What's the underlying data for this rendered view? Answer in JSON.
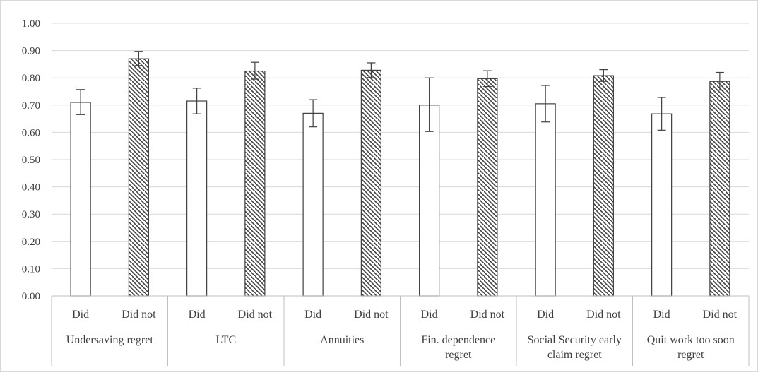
{
  "chart_data": {
    "type": "bar",
    "title": "",
    "xlabel": "",
    "ylabel": "",
    "ylim": [
      0,
      1.0
    ],
    "yticks": [
      "0.00",
      "0.10",
      "0.20",
      "0.30",
      "0.40",
      "0.50",
      "0.60",
      "0.70",
      "0.80",
      "0.90",
      "1.00"
    ],
    "grid": true,
    "legend": "none",
    "groups": [
      {
        "label_lines": [
          "Undersaving regret"
        ],
        "bars": [
          {
            "label": "Did",
            "value": 0.71,
            "err_low": 0.665,
            "err_high": 0.757,
            "style": "open"
          },
          {
            "label": "Did not",
            "value": 0.87,
            "err_low": 0.845,
            "err_high": 0.897,
            "style": "hatched"
          }
        ]
      },
      {
        "label_lines": [
          "LTC"
        ],
        "bars": [
          {
            "label": "Did",
            "value": 0.715,
            "err_low": 0.668,
            "err_high": 0.762,
            "style": "open"
          },
          {
            "label": "Did not",
            "value": 0.825,
            "err_low": 0.795,
            "err_high": 0.857,
            "style": "hatched"
          }
        ]
      },
      {
        "label_lines": [
          "Annuities"
        ],
        "bars": [
          {
            "label": "Did",
            "value": 0.67,
            "err_low": 0.62,
            "err_high": 0.72,
            "style": "open"
          },
          {
            "label": "Did not",
            "value": 0.828,
            "err_low": 0.801,
            "err_high": 0.855,
            "style": "hatched"
          }
        ]
      },
      {
        "label_lines": [
          "Fin. dependence",
          "regret"
        ],
        "bars": [
          {
            "label": "Did",
            "value": 0.7,
            "err_low": 0.603,
            "err_high": 0.8,
            "style": "open"
          },
          {
            "label": "Did not",
            "value": 0.797,
            "err_low": 0.768,
            "err_high": 0.826,
            "style": "hatched"
          }
        ]
      },
      {
        "label_lines": [
          "Social Security early",
          "claim regret"
        ],
        "bars": [
          {
            "label": "Did",
            "value": 0.705,
            "err_low": 0.638,
            "err_high": 0.772,
            "style": "open"
          },
          {
            "label": "Did not",
            "value": 0.808,
            "err_low": 0.787,
            "err_high": 0.83,
            "style": "hatched"
          }
        ]
      },
      {
        "label_lines": [
          "Quit work too soon",
          "regret"
        ],
        "bars": [
          {
            "label": "Did",
            "value": 0.668,
            "err_low": 0.608,
            "err_high": 0.728,
            "style": "open"
          },
          {
            "label": "Did not",
            "value": 0.787,
            "err_low": 0.755,
            "err_high": 0.82,
            "style": "hatched"
          }
        ]
      }
    ],
    "colors": {
      "bar_fill_open": "#ffffff",
      "bar_stroke": "#404040",
      "hatch": "#404040",
      "grid": "#d9d9d9",
      "axis": "#bfbfbf",
      "text": "#404040"
    }
  }
}
